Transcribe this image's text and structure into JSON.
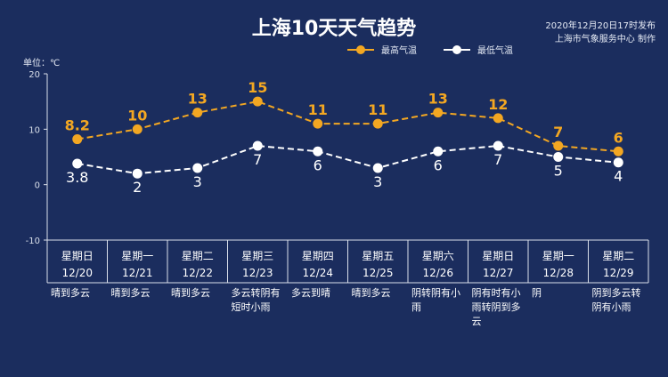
{
  "title": "上海10天天气趋势",
  "publish": {
    "line1": "2020年12月20日17时发布",
    "line2": "上海市气象服务中心 制作"
  },
  "unit_label": "单位：℃",
  "colors": {
    "background": "#1b2d5e",
    "high": "#f3a722",
    "low": "#ffffff",
    "axis": "#d9dfea"
  },
  "chart_data": {
    "type": "line",
    "title": "上海10天天气趋势",
    "ylabel": "单位：℃",
    "ylim": [
      -10,
      20
    ],
    "yticks": [
      -10,
      0,
      10,
      20
    ],
    "grid": false,
    "legend": "top-right",
    "categories": [
      {
        "weekday": "星期日",
        "date": "12/20"
      },
      {
        "weekday": "星期一",
        "date": "12/21"
      },
      {
        "weekday": "星期二",
        "date": "12/22"
      },
      {
        "weekday": "星期三",
        "date": "12/23"
      },
      {
        "weekday": "星期四",
        "date": "12/24"
      },
      {
        "weekday": "星期五",
        "date": "12/25"
      },
      {
        "weekday": "星期六",
        "date": "12/26"
      },
      {
        "weekday": "星期日",
        "date": "12/27"
      },
      {
        "weekday": "星期一",
        "date": "12/28"
      },
      {
        "weekday": "星期二",
        "date": "12/29"
      }
    ],
    "series": [
      {
        "name": "最高气温",
        "values": [
          8.2,
          10,
          13,
          15,
          11,
          11,
          13,
          12,
          7,
          6
        ],
        "labels": [
          "8.2",
          "10",
          "13",
          "15",
          "11",
          "11",
          "13",
          "12",
          "7",
          "6"
        ]
      },
      {
        "name": "最低气温",
        "values": [
          3.8,
          2,
          3,
          7,
          6,
          3,
          6,
          7,
          5,
          4
        ],
        "labels": [
          "3.8",
          "2",
          "3",
          "7",
          "6",
          "3",
          "6",
          "7",
          "5",
          "4"
        ]
      }
    ],
    "weather": [
      "晴到多云",
      "晴到多云",
      "晴到多云",
      "多云转阴有短时小雨",
      "多云到晴",
      "晴到多云",
      "阴转阴有小雨",
      "阴有时有小雨转阴到多云",
      "阴",
      "阴到多云转阴有小雨"
    ]
  }
}
